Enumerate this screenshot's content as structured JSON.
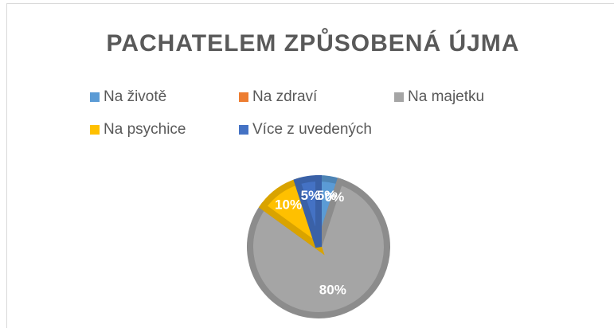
{
  "chart_data": {
    "type": "pie",
    "title": "PACHATELEM ZPŮSOBENÁ ÚJMA",
    "categories": [
      "Na životě",
      "Na zdraví",
      "Na majetku",
      "Na psychice",
      "Více z uvedených"
    ],
    "values": [
      5,
      0,
      80,
      10,
      5
    ],
    "value_labels": [
      "5%",
      "0%",
      "80%",
      "10%",
      "5%"
    ],
    "colors": [
      "#5b9bd5",
      "#ed7d31",
      "#a5a5a5",
      "#ffc000",
      "#4472c4"
    ],
    "legend": "top"
  }
}
